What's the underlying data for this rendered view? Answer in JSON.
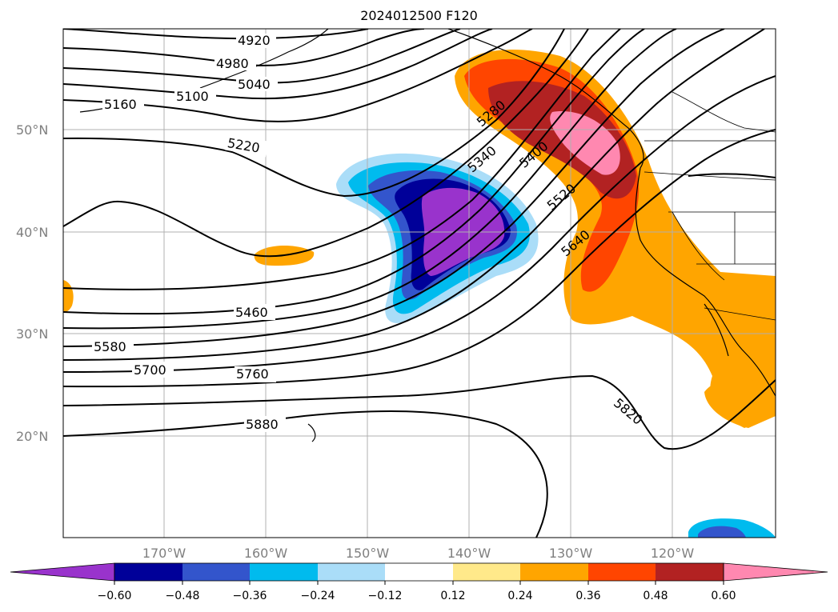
{
  "title": "2024012500 F120",
  "map": {
    "lat_labels": [
      "50°N",
      "40°N",
      "30°N",
      "20°N"
    ],
    "lon_labels": [
      "170°W",
      "160°W",
      "150°W",
      "140°W",
      "130°W",
      "120°W"
    ],
    "contour_labels": [
      "4920",
      "4980",
      "5040",
      "5100",
      "5160",
      "5220",
      "5280",
      "5340",
      "5400",
      "5520",
      "5640",
      "5460",
      "5580",
      "5700",
      "5760",
      "5820",
      "5880"
    ]
  },
  "colorbar": {
    "ticks": [
      "−0.60",
      "−0.48",
      "−0.36",
      "−0.24",
      "−0.12",
      "0.12",
      "0.24",
      "0.36",
      "0.48",
      "0.60"
    ],
    "colors": [
      "#9933cc",
      "#000099",
      "#3355cc",
      "#00bbee",
      "#aaddf8",
      "#ffffff",
      "#ffe98a",
      "#ffa500",
      "#ff4500",
      "#b22222",
      "#ff88b0"
    ]
  }
}
